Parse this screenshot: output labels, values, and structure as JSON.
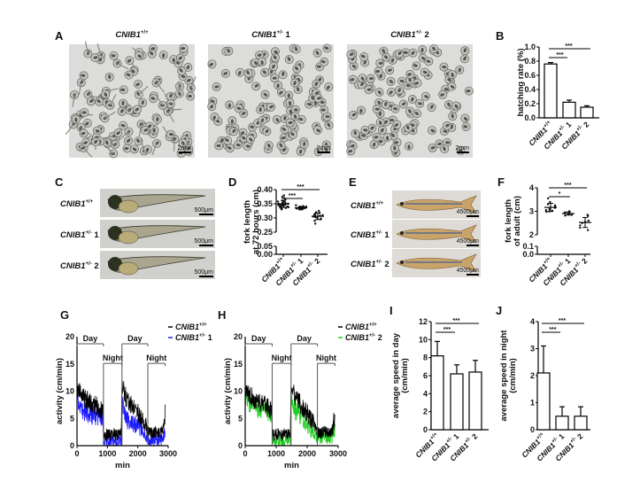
{
  "genotypes": [
    {
      "gene": "CNIB1",
      "sup": "+/+",
      "suffix": ""
    },
    {
      "gene": "CNIB1",
      "sup": "+/-",
      "suffix": " 1"
    },
    {
      "gene": "CNIB1",
      "sup": "+/-",
      "suffix": " 2"
    }
  ],
  "panels": {
    "A": {
      "label": "A",
      "scale_bar": "2mm"
    },
    "B": {
      "label": "B"
    },
    "C": {
      "label": "C",
      "scale_bar": "500μm"
    },
    "D": {
      "label": "D"
    },
    "E": {
      "label": "E",
      "scale_bar": "4500μm"
    },
    "F": {
      "label": "F"
    },
    "G": {
      "label": "G"
    },
    "H": {
      "label": "H"
    },
    "I": {
      "label": "I"
    },
    "J": {
      "label": "J"
    }
  },
  "colors": {
    "wt": "#000000",
    "het1": "#1a1aff",
    "het2": "#22cc22"
  },
  "chart_data": [
    {
      "id": "B",
      "type": "bar",
      "categories_ref": "genotypes",
      "ylabel": [
        "hatching rate (%)"
      ],
      "ylim": [
        0,
        1.0
      ],
      "yticks": [
        "0.0",
        "0.2",
        "0.4",
        "0.6",
        "0.8",
        "1.0"
      ],
      "values": [
        0.76,
        0.22,
        0.15
      ],
      "errors": [
        0.02,
        0.03,
        0.02
      ],
      "significance": [
        {
          "from": 0,
          "to": 1,
          "label": "***"
        },
        {
          "from": 0,
          "to": 2,
          "label": "***"
        }
      ]
    },
    {
      "id": "D",
      "type": "scatter",
      "ylabel": [
        "fork length",
        "at 72 hours (cm)"
      ],
      "ylim": [
        0,
        0.4
      ],
      "axis_break": [
        0.05,
        0.25
      ],
      "yticks": [
        "0.00",
        "0.05",
        "0.25",
        "0.30",
        "0.35",
        "0.40"
      ],
      "groups": [
        [
          0.38,
          0.375,
          0.37,
          0.365,
          0.36,
          0.36,
          0.358,
          0.355,
          0.355,
          0.352,
          0.35,
          0.35,
          0.348,
          0.347,
          0.345,
          0.345,
          0.343,
          0.342,
          0.34,
          0.34,
          0.338,
          0.336,
          0.335,
          0.333,
          0.33,
          0.345,
          0.35,
          0.34
        ],
        [
          0.345,
          0.342,
          0.34,
          0.34,
          0.338,
          0.337,
          0.336,
          0.335,
          0.335,
          0.334,
          0.333,
          0.332,
          0.331,
          0.33,
          0.33,
          0.338,
          0.336,
          0.334
        ],
        [
          0.325,
          0.32,
          0.318,
          0.315,
          0.312,
          0.31,
          0.31,
          0.308,
          0.305,
          0.303,
          0.3,
          0.298,
          0.295,
          0.29,
          0.28
        ]
      ],
      "significance": [
        {
          "from": 0,
          "to": 1,
          "label": "***"
        },
        {
          "from": 0,
          "to": 2,
          "label": "***"
        }
      ]
    },
    {
      "id": "F",
      "type": "scatter",
      "ylabel": [
        "fork length",
        "of adult (cm)"
      ],
      "ylim": [
        0,
        4
      ],
      "axis_break": [
        0.1,
        2
      ],
      "yticks": [
        "0.0",
        "0.1",
        "2",
        "3",
        "4"
      ],
      "groups": [
        [
          3.55,
          3.4,
          3.3,
          3.25,
          3.2,
          3.15,
          3.1,
          3.05,
          3.02,
          3.0,
          3.0,
          2.98
        ],
        [
          3.0,
          2.95,
          2.9,
          2.85,
          2.82
        ],
        [
          2.85,
          2.8,
          2.6,
          2.55,
          2.5,
          2.4,
          2.3,
          2.2
        ]
      ],
      "significance": [
        {
          "from": 0,
          "to": 1,
          "label": "*"
        },
        {
          "from": 0,
          "to": 2,
          "label": "***"
        }
      ]
    },
    {
      "id": "G",
      "type": "line",
      "xlabel": "min",
      "ylabel": [
        "activity (cm/min)"
      ],
      "xlim": [
        0,
        3000
      ],
      "ylim": [
        0,
        20
      ],
      "xticks": [
        "0",
        "1000",
        "2000",
        "3000"
      ],
      "yticks": [
        "0",
        "5",
        "10",
        "15",
        "20"
      ],
      "periods": [
        {
          "label": "Day",
          "from": 0,
          "to": 870
        },
        {
          "label": "Night",
          "from": 870,
          "to": 1480
        },
        {
          "label": "Day",
          "from": 1480,
          "to": 2330
        },
        {
          "label": "Night",
          "from": 2330,
          "to": 2900
        }
      ],
      "series": [
        {
          "genotype": 1,
          "color": "#1a1aff",
          "x": [
            0,
            100,
            300,
            600,
            860,
            880,
            1460,
            1480,
            1600,
            1800,
            2000,
            2100,
            2250,
            2330,
            2800,
            2900
          ],
          "y": [
            9,
            7,
            6,
            5.5,
            5,
            0.8,
            0.8,
            8,
            5,
            4,
            3.8,
            3.5,
            1.5,
            1,
            1,
            2.5
          ]
        },
        {
          "genotype": 0,
          "color": "#000000",
          "x": [
            0,
            100,
            200,
            400,
            600,
            860,
            880,
            1460,
            1480,
            1600,
            1800,
            2000,
            2200,
            2330,
            2800,
            2900
          ],
          "y": [
            11,
            9.5,
            9,
            8,
            7.5,
            6.5,
            2,
            2,
            11,
            9,
            7.5,
            6,
            4,
            2.5,
            2.5,
            6
          ]
        }
      ]
    },
    {
      "id": "H",
      "type": "line",
      "xlabel": "min",
      "ylabel": [
        "activity (cm/min)"
      ],
      "xlim": [
        0,
        3000
      ],
      "ylim": [
        0,
        20
      ],
      "xticks": [
        "0",
        "1000",
        "2000",
        "3000"
      ],
      "yticks": [
        "0",
        "5",
        "10",
        "15",
        "20"
      ],
      "periods": [
        {
          "label": "Day",
          "from": 0,
          "to": 870
        },
        {
          "label": "Night",
          "from": 870,
          "to": 1480
        },
        {
          "label": "Day",
          "from": 1480,
          "to": 2330
        },
        {
          "label": "Night",
          "from": 2330,
          "to": 2900
        }
      ],
      "series": [
        {
          "genotype": 2,
          "color": "#22cc22",
          "x": [
            0,
            100,
            300,
            600,
            860,
            880,
            1460,
            1480,
            1600,
            1800,
            2000,
            2200,
            2330,
            2800,
            2900
          ],
          "y": [
            9.5,
            8,
            7,
            6.5,
            6,
            1,
            1,
            9,
            6.5,
            5.5,
            4,
            2.5,
            1.5,
            1.5,
            3
          ]
        },
        {
          "genotype": 0,
          "color": "#000000",
          "x": [
            0,
            100,
            200,
            400,
            600,
            860,
            880,
            1460,
            1480,
            1600,
            1800,
            2000,
            2200,
            2330,
            2800,
            2900
          ],
          "y": [
            11,
            9.5,
            9,
            8,
            7.5,
            6.5,
            2,
            2,
            11,
            9,
            7.5,
            6,
            4,
            2.5,
            2.5,
            6
          ]
        }
      ]
    },
    {
      "id": "I",
      "type": "bar",
      "ylabel": [
        "average speed in day",
        "(cm/min)"
      ],
      "ylim": [
        0,
        12
      ],
      "yticks": [
        "0",
        "2",
        "4",
        "6",
        "8",
        "10",
        "12"
      ],
      "values": [
        8.2,
        6.2,
        6.4
      ],
      "errors": [
        1.6,
        1.0,
        1.3
      ],
      "significance": [
        {
          "from": 0,
          "to": 1,
          "label": "***"
        },
        {
          "from": 0,
          "to": 2,
          "label": "***"
        }
      ]
    },
    {
      "id": "J",
      "type": "bar",
      "ylabel": [
        "average speed in night",
        "(cm/min)"
      ],
      "ylim": [
        0,
        4
      ],
      "yticks": [
        "0",
        "1",
        "2",
        "3",
        "4"
      ],
      "values": [
        2.1,
        0.5,
        0.5
      ],
      "errors": [
        1.0,
        0.35,
        0.35
      ],
      "significance": [
        {
          "from": 0,
          "to": 1,
          "label": "***"
        },
        {
          "from": 0,
          "to": 2,
          "label": "***"
        }
      ]
    }
  ]
}
